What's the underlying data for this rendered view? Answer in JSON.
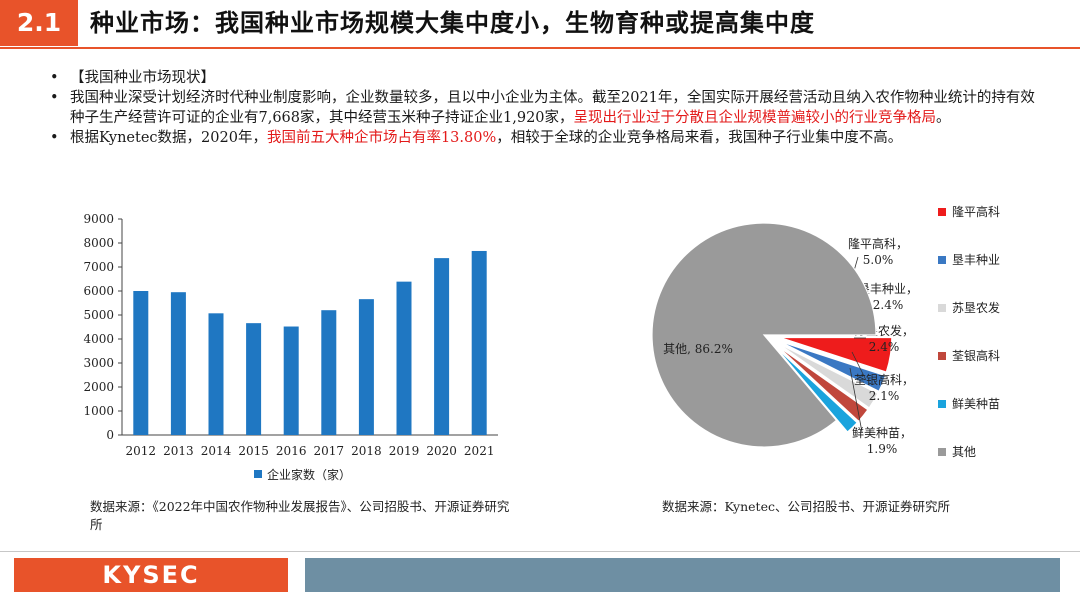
{
  "header": {
    "section_number": "2.1",
    "title": "种业市场：我国种业市场规模大集中度小，生物育种或提高集中度"
  },
  "bullets": [
    {
      "plain": "【我国种业市场现状】",
      "red": "",
      "after": ""
    },
    {
      "plain": "我国种业深受计划经济时代种业制度影响，企业数量较多，且以中小企业为主体。截至2021年，全国实际开展经营活动且纳入农作物种业统计的持有效种子生产经营许可证的企业有7,668家，其中经营玉米种子持证企业1,920家，",
      "red": "呈现出行业过于分散且企业规模普遍较小的行业竞争格局",
      "after": "。"
    },
    {
      "plain": "根据Kynetec数据，2020年，",
      "red": "我国前五大种企市场占有率13.80%",
      "after": "，相较于全球的企业竞争格局来看，我国种子行业集中度不高。"
    }
  ],
  "bar_chart_source": "数据来源：《2022年中国农作物种业发展报告》、公司招股书、开源证券研究所",
  "pie_chart_source": "数据来源：Kynetec、公司招股书、开源证券研究所",
  "footer": {
    "logo": "KYSEC"
  },
  "colors": {
    "accent": "#e8532a",
    "bar": "#1f77c2",
    "footer_band": "#6e8fa3"
  },
  "chart_data": [
    {
      "type": "bar",
      "categories": [
        "2012",
        "2013",
        "2014",
        "2015",
        "2016",
        "2017",
        "2018",
        "2019",
        "2020",
        "2021"
      ],
      "series": [
        {
          "name": "企业家数（家）",
          "values": [
            6000,
            5950,
            5070,
            4660,
            4520,
            5200,
            5660,
            6390,
            7370,
            7668
          ],
          "color": "#1f77c2"
        }
      ],
      "ylim": [
        0,
        9000
      ],
      "yticks": [
        "0",
        "1000",
        "2000",
        "3000",
        "4000",
        "5000",
        "6000",
        "7000",
        "8000",
        "9000"
      ],
      "grid": false,
      "legend_placement": "bottom"
    },
    {
      "type": "pie",
      "slices": [
        {
          "name": "隆平高科",
          "label_value": "5.0%",
          "value": 5.0,
          "color": "#ee1c1c"
        },
        {
          "name": "垦丰种业",
          "label_value": "2.4%",
          "value": 2.4,
          "color": "#3a78c3"
        },
        {
          "name": "苏垦农发",
          "label_value": "2.4%",
          "value": 2.4,
          "color": "#d9d9d9"
        },
        {
          "name": "荃银高科",
          "label_value": "2.1%",
          "value": 2.1,
          "color": "#c0473c"
        },
        {
          "name": "鲜美种苗",
          "label_value": "1.9%",
          "value": 1.9,
          "color": "#1aa3dd"
        },
        {
          "name": "其他",
          "label_value": "86.2%",
          "value": 86.2,
          "color": "#9a9a9a"
        }
      ],
      "legend_placement": "right"
    }
  ]
}
